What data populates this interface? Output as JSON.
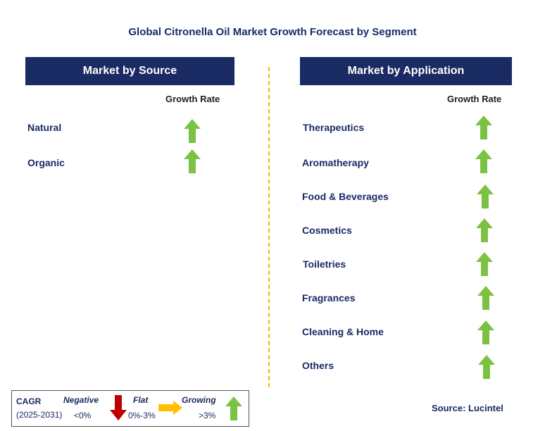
{
  "title": "Global Citronella Oil Market Growth Forecast by Segment",
  "left_panel": {
    "header": "Market by Source",
    "growth_rate_label": "Growth Rate",
    "rows": [
      {
        "label": "Natural",
        "trend": "growing"
      },
      {
        "label": "Organic",
        "trend": "growing"
      }
    ]
  },
  "right_panel": {
    "header": "Market by Application",
    "growth_rate_label": "Growth Rate",
    "rows": [
      {
        "label": "Therapeutics",
        "trend": "growing"
      },
      {
        "label": "Aromatherapy",
        "trend": "growing"
      },
      {
        "label": "Food & Beverages",
        "trend": "growing"
      },
      {
        "label": "Cosmetics",
        "trend": "growing"
      },
      {
        "label": "Toiletries",
        "trend": "growing"
      },
      {
        "label": "Fragrances",
        "trend": "growing"
      },
      {
        "label": "Cleaning & Home",
        "trend": "growing"
      },
      {
        "label": "Others",
        "trend": "growing"
      }
    ]
  },
  "legend": {
    "cagr_label": "CAGR",
    "period": "(2025-2031)",
    "negative": {
      "label": "Negative",
      "range": "<0%",
      "color": "#c00000"
    },
    "flat": {
      "label": "Flat",
      "range": "0%-3%",
      "color": "#ffc000"
    },
    "growing": {
      "label": "Growing",
      "range": ">3%",
      "color": "#7cc242"
    }
  },
  "source": "Source: Lucintel"
}
